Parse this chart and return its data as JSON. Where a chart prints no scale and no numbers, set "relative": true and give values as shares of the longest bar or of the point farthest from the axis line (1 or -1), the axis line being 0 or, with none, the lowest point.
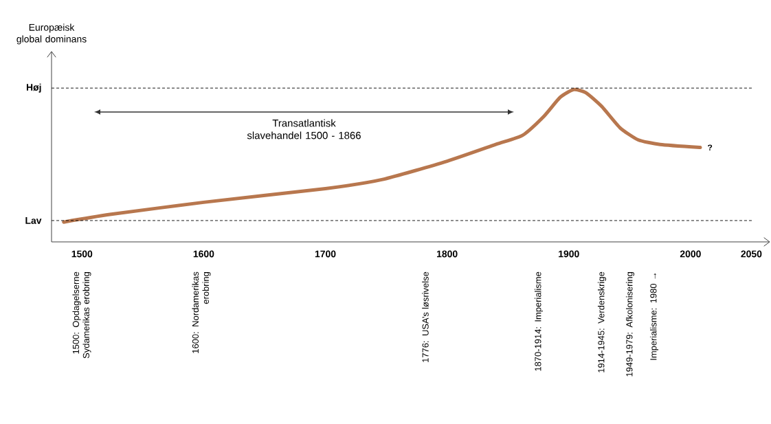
{
  "chart_data": {
    "type": "line",
    "ylabel": "Europæisk global dominans",
    "relative": true,
    "x": [
      1485,
      1523,
      1600,
      1700,
      1747,
      1800,
      1840,
      1862,
      1879,
      1893,
      1904,
      1914,
      1927,
      1942,
      1957,
      1975,
      2008
    ],
    "series": [
      {
        "color": "#b8774e",
        "values": [
          0.13,
          0.18,
          0.26,
          0.35,
          0.41,
          0.53,
          0.64,
          0.7,
          0.82,
          0.95,
          1.0,
          0.98,
          0.89,
          0.75,
          0.67,
          0.64,
          0.62
        ]
      }
    ],
    "xlim": [
      1475,
      2065
    ],
    "xticks": [
      1500,
      1600,
      1700,
      1800,
      1900,
      2000,
      2050
    ],
    "ref_lines": [
      {
        "axis": "y",
        "value": 1.01,
        "label": "Høj",
        "line_style": "dashed",
        "color": "#000000"
      },
      {
        "axis": "y",
        "value": 0.14,
        "label": "Lav",
        "line_style": "dashed",
        "color": "#000000"
      }
    ],
    "annotations": [
      "?",
      "Transatlantisk slavehandel 1500 - 1866",
      "1500: Opdagelserne Sydamerikas erobring",
      "1600: Nordamerikas erobring",
      "1776: USA’s løsrivelse",
      "1870-1914: Imperialisme",
      "1914-1945: Verdenskrige",
      "1949-1979: Afkolonisering",
      "Imperialisme: 1980 →"
    ],
    "grid": false,
    "marker": "none",
    "line_style": "solid"
  }
}
